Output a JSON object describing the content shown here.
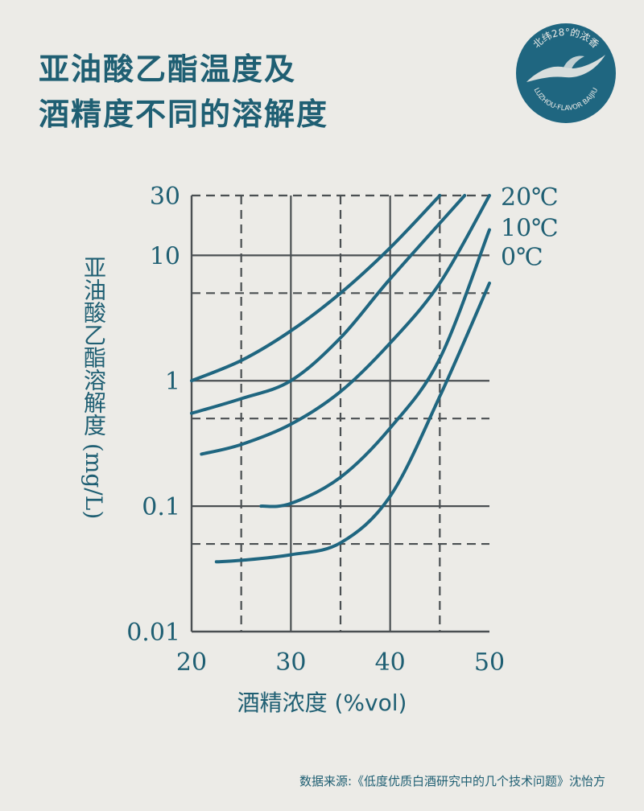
{
  "title_lines": [
    "亚油酸乙酯温度及",
    "酒精度不同的溶解度"
  ],
  "logo": {
    "arc_text": "北纬28°的浓香",
    "subtitle": "LUZHOU-FLAVOR BAIJIU",
    "color": "#1f6680"
  },
  "source": "数据来源:《低度优质白酒研究中的几个技术问题》沈怡方",
  "chart_data": {
    "type": "line",
    "xlabel": "酒精浓度 (%vol)",
    "ylabel": "亚油酸乙酯溶解度 (mg/L)",
    "xlim": [
      20,
      50
    ],
    "ylim": [
      0.01,
      30
    ],
    "yscale": "log",
    "x_ticks": [
      20,
      30,
      40,
      50
    ],
    "x_tick_labels": [
      "20",
      "30",
      "40",
      "50"
    ],
    "y_ticks": [
      0.01,
      0.1,
      1,
      10,
      30
    ],
    "y_tick_labels": [
      "0.01",
      "0.1",
      "1",
      "10",
      "30"
    ],
    "grid_solid_x": [
      20,
      30,
      40,
      50
    ],
    "grid_solid_y": [
      0.1,
      1,
      10
    ],
    "grid_dashed_x": [
      25,
      35,
      45
    ],
    "grid_dashed_y": [
      0.05,
      0.5,
      5,
      30
    ],
    "series_labels": [
      {
        "text": "20℃",
        "y": 30
      },
      {
        "text": "10℃",
        "y": 17
      },
      {
        "text": "0℃",
        "y": 10
      }
    ],
    "color": "#1f6680",
    "series": [
      {
        "x": [
          20,
          25,
          30,
          35,
          40,
          45
        ],
        "y": [
          1.0,
          1.45,
          2.5,
          5.0,
          11.5,
          30
        ]
      },
      {
        "x": [
          20,
          25,
          30,
          35,
          40,
          47.5
        ],
        "y": [
          0.55,
          0.72,
          1.0,
          2.2,
          6.5,
          30
        ]
      },
      {
        "x": [
          21,
          25,
          30,
          35,
          40,
          45,
          50
        ],
        "y": [
          0.26,
          0.31,
          0.45,
          0.82,
          2.0,
          6.0,
          30
        ]
      },
      {
        "x": [
          27,
          30,
          35,
          40,
          45,
          50
        ],
        "y": [
          0.1,
          0.105,
          0.17,
          0.42,
          1.5,
          16
        ]
      },
      {
        "x": [
          22.5,
          25,
          30,
          35,
          40,
          45,
          50
        ],
        "y": [
          0.036,
          0.037,
          0.041,
          0.051,
          0.12,
          0.75,
          6.0
        ]
      }
    ]
  }
}
